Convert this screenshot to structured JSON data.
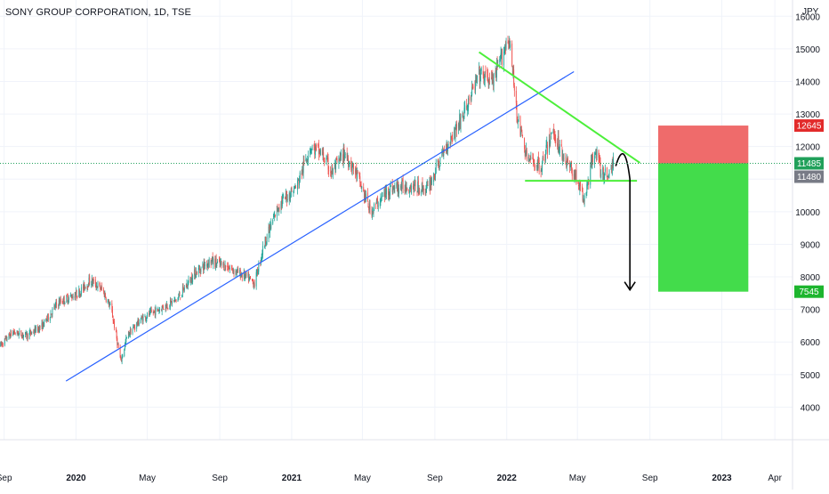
{
  "chart_title": "SONY GROUP CORPORATION, 1D, TSE",
  "colors": {
    "up": "#26a69a",
    "down": "#ef5350",
    "trendline": "#2962ff",
    "pattern": "#4cef3a",
    "stop_zone": "#ef6b6b",
    "target_zone": "#43dc4b",
    "last_price_label": "#20a05a",
    "stop_label": "#e22b2b",
    "prev_close_label": "#787b86",
    "target_label": "#1db52e",
    "projection_arrow": "#000000"
  },
  "chart_data": {
    "type": "candlestick",
    "title": "SONY GROUP CORPORATION, 1D, TSE",
    "y_unit": "JPY",
    "ylim": [
      3000,
      16500
    ],
    "xlim": [
      "2019-08-25",
      "2023-05-01"
    ],
    "y_ticks": [
      4000,
      5000,
      6000,
      7000,
      8000,
      9000,
      10000,
      11000,
      12000,
      13000,
      14000,
      15000,
      16000
    ],
    "x_ticks": [
      {
        "date": "2019-09-01",
        "label": "Sep"
      },
      {
        "date": "2020-01-01",
        "label": "2020"
      },
      {
        "date": "2020-05-01",
        "label": "May"
      },
      {
        "date": "2020-09-01",
        "label": "Sep"
      },
      {
        "date": "2021-01-01",
        "label": "2021"
      },
      {
        "date": "2021-05-01",
        "label": "May"
      },
      {
        "date": "2021-09-01",
        "label": "Sep"
      },
      {
        "date": "2022-01-01",
        "label": "2022"
      },
      {
        "date": "2022-05-01",
        "label": "May"
      },
      {
        "date": "2022-09-01",
        "label": "Sep"
      },
      {
        "date": "2023-01-01",
        "label": "2023"
      },
      {
        "date": "2023-04-01",
        "label": "Apr"
      }
    ],
    "price_path": [
      [
        "2019-08-26",
        5900
      ],
      [
        "2019-09-15",
        6300
      ],
      [
        "2019-10-10",
        6200
      ],
      [
        "2019-11-05",
        6500
      ],
      [
        "2019-12-01",
        7200
      ],
      [
        "2020-01-05",
        7500
      ],
      [
        "2020-01-25",
        7900
      ],
      [
        "2020-02-15",
        7600
      ],
      [
        "2020-03-01",
        7000
      ],
      [
        "2020-03-17",
        5400
      ],
      [
        "2020-03-28",
        6200
      ],
      [
        "2020-04-20",
        6700
      ],
      [
        "2020-05-20",
        7000
      ],
      [
        "2020-06-20",
        7300
      ],
      [
        "2020-07-20",
        8100
      ],
      [
        "2020-08-15",
        8500
      ],
      [
        "2020-09-15",
        8300
      ],
      [
        "2020-10-15",
        8000
      ],
      [
        "2020-10-30",
        7800
      ],
      [
        "2020-11-15",
        9000
      ],
      [
        "2020-12-10",
        10200
      ],
      [
        "2021-01-10",
        10800
      ],
      [
        "2021-02-01",
        12000
      ],
      [
        "2021-02-20",
        11800
      ],
      [
        "2021-03-10",
        11200
      ],
      [
        "2021-04-01",
        11800
      ],
      [
        "2021-04-20",
        11200
      ],
      [
        "2021-05-15",
        10000
      ],
      [
        "2021-06-15",
        10700
      ],
      [
        "2021-07-15",
        10800
      ],
      [
        "2021-08-20",
        10700
      ],
      [
        "2021-09-20",
        12000
      ],
      [
        "2021-10-20",
        13000
      ],
      [
        "2021-11-15",
        14200
      ],
      [
        "2021-12-10",
        14000
      ],
      [
        "2022-01-04",
        15400
      ],
      [
        "2022-01-20",
        12800
      ],
      [
        "2022-02-05",
        11600
      ],
      [
        "2022-03-01",
        11400
      ],
      [
        "2022-03-20",
        12500
      ],
      [
        "2022-04-10",
        11600
      ],
      [
        "2022-05-01",
        11000
      ],
      [
        "2022-05-12",
        10300
      ],
      [
        "2022-05-31",
        12000
      ],
      [
        "2022-06-10",
        11200
      ],
      [
        "2022-06-20",
        11100
      ],
      [
        "2022-07-01",
        11480
      ]
    ],
    "price_path_note": "Daily OHLC candles approximated along this close-price path.",
    "annotations": {
      "ascending_trendline": [
        [
          "2019-12-15",
          4800
        ],
        [
          "2022-04-25",
          14300
        ]
      ],
      "descending_resistance": [
        [
          "2021-11-15",
          14900
        ],
        [
          "2022-08-15",
          11500
        ]
      ],
      "support_line": [
        [
          "2022-02-01",
          10950
        ],
        [
          "2022-08-10",
          10950
        ]
      ],
      "projection_curve": [
        [
          "2022-07-05",
          11400
        ],
        [
          "2022-07-20",
          12050
        ],
        [
          "2022-07-29",
          11000
        ],
        [
          "2022-07-29",
          7600
        ]
      ],
      "stop_zone": {
        "from_date": "2022-09-15",
        "to_date": "2023-02-15",
        "low": 11485,
        "high": 12645
      },
      "target_zone": {
        "from_date": "2022-09-15",
        "to_date": "2023-02-15",
        "low": 7545,
        "high": 11485
      }
    },
    "price_labels": [
      {
        "value": 12645,
        "text": "12645",
        "role": "stop"
      },
      {
        "value": 11485,
        "text": "11485",
        "role": "last"
      },
      {
        "value": 11480,
        "text": "11480",
        "role": "prev"
      },
      {
        "value": 7545,
        "text": "7545",
        "role": "target"
      }
    ],
    "last_price": 11485,
    "grid": true
  }
}
